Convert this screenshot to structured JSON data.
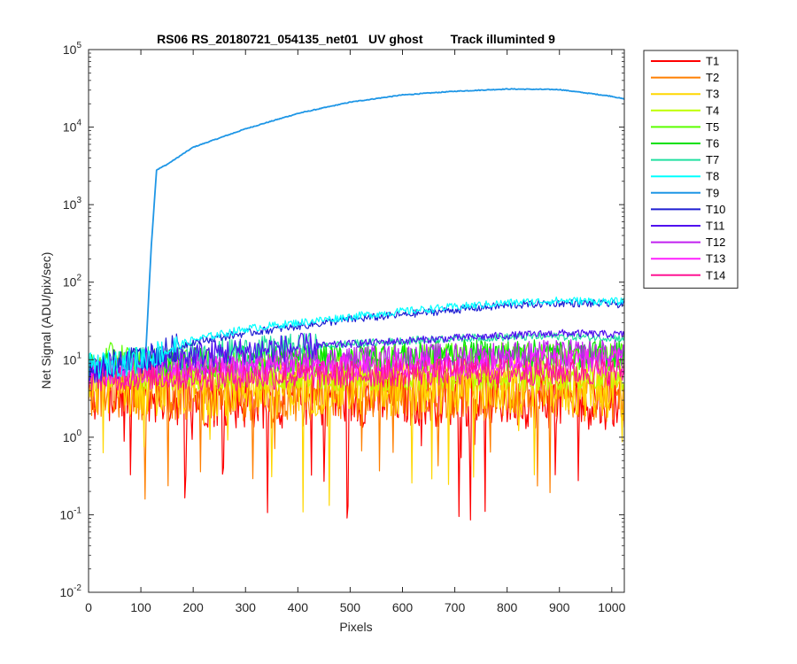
{
  "chart_data": {
    "type": "line",
    "title": "RS06 RS_20180721_054135_net01   UV ghost        Track illuminted 9",
    "xlabel": "Pixels",
    "ylabel": "Net Signal (ADU/pix/sec)",
    "xlim": [
      0,
      1024
    ],
    "ylim": [
      0.01,
      100000
    ],
    "yscale": "log",
    "xticks": [
      0,
      100,
      200,
      300,
      400,
      500,
      600,
      700,
      800,
      900,
      1000
    ],
    "yticks": [
      {
        "base": "10",
        "exp": "-2",
        "value": 0.01
      },
      {
        "base": "10",
        "exp": "-1",
        "value": 0.1
      },
      {
        "base": "10",
        "exp": "0",
        "value": 1
      },
      {
        "base": "10",
        "exp": "1",
        "value": 10
      },
      {
        "base": "10",
        "exp": "2",
        "value": 100
      },
      {
        "base": "10",
        "exp": "3",
        "value": 1000
      },
      {
        "base": "10",
        "exp": "4",
        "value": 10000
      },
      {
        "base": "10",
        "exp": "5",
        "value": 100000
      }
    ],
    "grid": false,
    "legend_position": "outside-right-top",
    "series": [
      {
        "name": "T1",
        "color": "#ff0000",
        "noisy": true,
        "x": [
          0,
          100,
          300,
          500,
          700,
          900,
          1024
        ],
        "y": [
          4,
          3.5,
          3,
          3.2,
          3.3,
          3,
          3
        ]
      },
      {
        "name": "T2",
        "color": "#ff7f00",
        "noisy": true,
        "x": [
          0,
          100,
          300,
          500,
          700,
          900,
          1024
        ],
        "y": [
          4.5,
          4,
          3.8,
          4,
          4,
          3.8,
          3.5
        ]
      },
      {
        "name": "T3",
        "color": "#ffd700",
        "noisy": true,
        "x": [
          0,
          100,
          300,
          500,
          700,
          900,
          1024
        ],
        "y": [
          5,
          4.5,
          4.5,
          4.5,
          4.5,
          4.5,
          4
        ]
      },
      {
        "name": "T4",
        "color": "#bfff00",
        "noisy": true,
        "x": [
          0,
          100,
          300,
          500,
          700,
          900,
          1024
        ],
        "y": [
          6,
          6,
          6,
          6,
          6,
          6,
          6
        ]
      },
      {
        "name": "T5",
        "color": "#5cff00",
        "noisy": true,
        "x": [
          0,
          50,
          100,
          300,
          500,
          700,
          900,
          1024
        ],
        "y": [
          7,
          12,
          9,
          9,
          10,
          11,
          11,
          11
        ]
      },
      {
        "name": "T6",
        "color": "#00e000",
        "noisy": true,
        "x": [
          0,
          100,
          300,
          500,
          700,
          900,
          1024
        ],
        "y": [
          8,
          9,
          10,
          11,
          12,
          12,
          12
        ]
      },
      {
        "name": "T7",
        "color": "#20e0a0",
        "noisy": true,
        "x": [
          0,
          100,
          300,
          500,
          700,
          900,
          1024
        ],
        "y": [
          8,
          10,
          13,
          16,
          19,
          20,
          19
        ]
      },
      {
        "name": "T8",
        "color": "#00ffff",
        "noisy": true,
        "x": [
          0,
          100,
          200,
          300,
          400,
          500,
          600,
          700,
          800,
          900,
          1024
        ],
        "y": [
          8,
          10,
          18,
          25,
          30,
          36,
          42,
          48,
          54,
          58,
          56
        ]
      },
      {
        "name": "T9",
        "color": "#1e96e6",
        "noisy": false,
        "x": [
          0,
          100,
          110,
          120,
          130,
          150,
          200,
          300,
          400,
          500,
          600,
          700,
          800,
          900,
          1000,
          1024
        ],
        "y": [
          6,
          8,
          15,
          300,
          2800,
          3300,
          5500,
          9500,
          15000,
          21000,
          26000,
          29000,
          31000,
          30500,
          25000,
          23000
        ]
      },
      {
        "name": "T10",
        "color": "#1e1ed2",
        "noisy": true,
        "x": [
          0,
          100,
          200,
          300,
          400,
          500,
          600,
          700,
          800,
          900,
          1024
        ],
        "y": [
          8,
          10,
          17,
          22,
          27,
          33,
          38,
          44,
          50,
          54,
          52
        ]
      },
      {
        "name": "T11",
        "color": "#5010f0",
        "noisy": true,
        "x": [
          0,
          100,
          300,
          500,
          700,
          900,
          1024
        ],
        "y": [
          7,
          10,
          13,
          16,
          19,
          22,
          21
        ]
      },
      {
        "name": "T12",
        "color": "#c020f0",
        "noisy": true,
        "x": [
          0,
          100,
          300,
          500,
          700,
          900,
          1024
        ],
        "y": [
          7,
          8,
          9,
          10,
          11,
          12,
          12
        ]
      },
      {
        "name": "T13",
        "color": "#ff20ff",
        "noisy": true,
        "x": [
          0,
          100,
          300,
          500,
          700,
          900,
          1024
        ],
        "y": [
          6.5,
          7,
          7.5,
          8,
          9,
          9.5,
          9.5
        ]
      },
      {
        "name": "T14",
        "color": "#ff1493",
        "noisy": true,
        "x": [
          0,
          100,
          300,
          500,
          700,
          900,
          1024
        ],
        "y": [
          6,
          6,
          6,
          6.5,
          7,
          7,
          7
        ]
      }
    ]
  }
}
